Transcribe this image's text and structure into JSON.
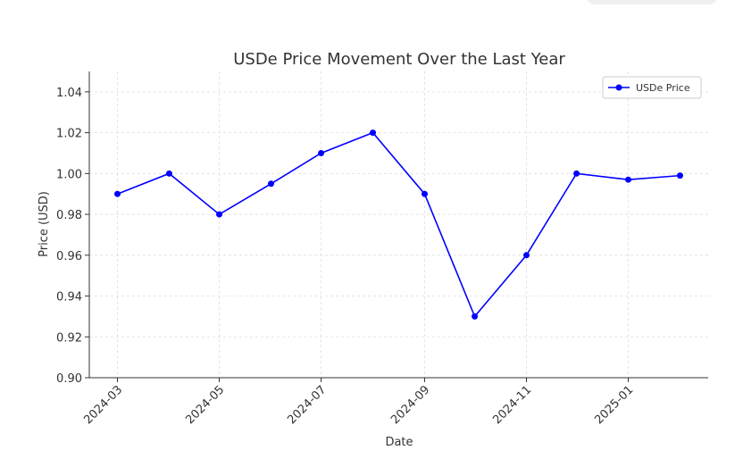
{
  "chart_data": {
    "type": "line",
    "title": "USDe Price Movement Over the Last Year",
    "x_label": "Date",
    "y_label": "Price (USD)",
    "x": [
      "2024-03",
      "2024-04",
      "2024-05",
      "2024-06",
      "2024-07",
      "2024-08",
      "2024-09",
      "2024-10",
      "2024-11",
      "2024-12",
      "2025-01",
      "2025-02"
    ],
    "series": [
      {
        "name": "USDe Price",
        "color": "#0000ff",
        "values": [
          0.99,
          1.0,
          0.98,
          0.995,
          1.01,
          1.02,
          0.99,
          0.93,
          0.96,
          1.0,
          0.997,
          0.999
        ]
      }
    ],
    "xticks": [
      "2024-03",
      "2024-05",
      "2024-07",
      "2024-09",
      "2024-11",
      "2025-01"
    ],
    "ylim": [
      0.9,
      1.05
    ],
    "yticks": [
      {
        "value": 0.9,
        "label": "0.90"
      },
      0.92,
      0.94,
      0.96,
      0.98,
      {
        "value": 1.0,
        "label": "1.00"
      },
      1.02,
      1.04
    ],
    "grid": true,
    "legend": "upper right"
  }
}
